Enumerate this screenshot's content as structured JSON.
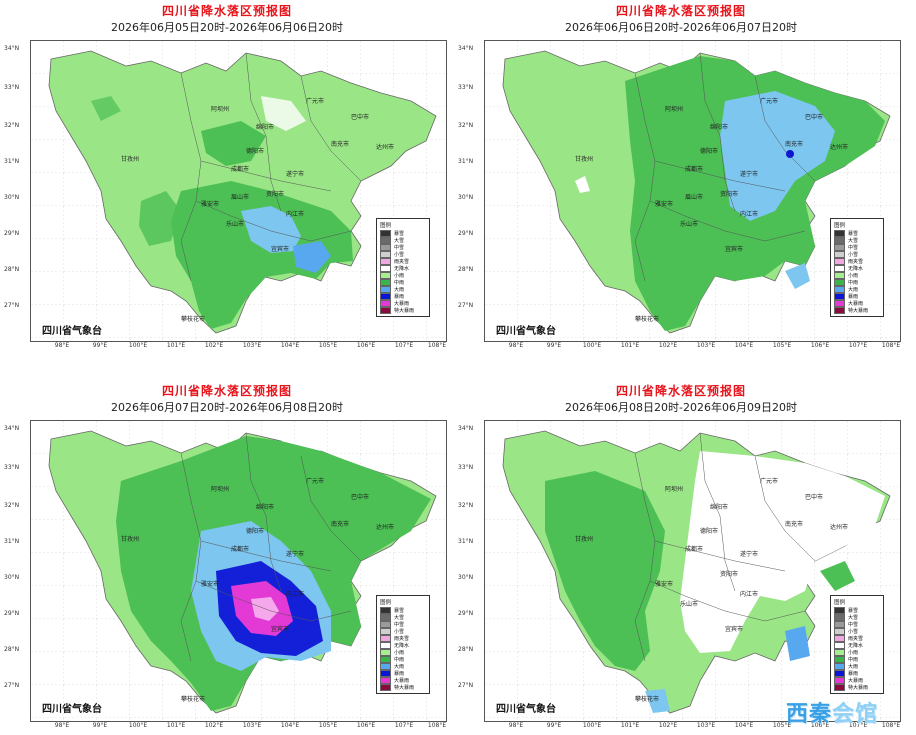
{
  "panels": [
    {
      "title": "四川省降水落区预报图",
      "period": "2026年06月05日20时-2026年06月06日20时",
      "bureau": "四川省气象台",
      "base_color": "#8fdf7f",
      "features": [
        {
          "kind": "blob",
          "color": "#3ab54a"
        },
        {
          "kind": "blob",
          "color": "#3ab54a"
        },
        {
          "kind": "blob",
          "color": "#58a8ef"
        }
      ],
      "cities": [
        "阿坝州",
        "绵阳市",
        "广元市",
        "巴中市",
        "德阳市",
        "南充市",
        "达州市",
        "甘孜州",
        "成都市",
        "遂宁市",
        "雅安市",
        "眉山市",
        "资阳市",
        "乐山市",
        "内江市",
        "宜宾市",
        "攀枝花市"
      ]
    },
    {
      "title": "四川省降水落区预报图",
      "period": "2026年06月06日20时-2026年06月07日20时",
      "bureau": "四川省气象台",
      "base_color": "#8fdf7f",
      "features": [],
      "cities": [
        "阿坝州",
        "绵阳市",
        "广元市",
        "巴中市",
        "德阳市",
        "南充市",
        "达州市",
        "甘孜州",
        "成都市",
        "遂宁市",
        "雅安市",
        "眉山市",
        "资阳市",
        "乐山市",
        "内江市",
        "宜宾市",
        "攀枝花市"
      ]
    },
    {
      "title": "四川省降水落区预报图",
      "period": "2026年06月07日20时-2026年06月08日20时",
      "bureau": "四川省气象台",
      "base_color": "#8fdf7f",
      "features": [],
      "cities": [
        "阿坝州",
        "绵阳市",
        "广元市",
        "巴中市",
        "德阳市",
        "南充市",
        "达州市",
        "甘孜州",
        "成都市",
        "遂宁市",
        "雅安市",
        "内江市",
        "宜宾市",
        "攀枝花市"
      ]
    },
    {
      "title": "四川省降水落区预报图",
      "period": "2026年06月08日20时-2026年06月09日20时",
      "bureau": "四川省气象台",
      "base_color": "#8fdf7f",
      "features": [],
      "cities": [
        "阿坝州",
        "绵阳市",
        "广元市",
        "巴中市",
        "德阳市",
        "南充市",
        "达州市",
        "甘孜州",
        "成都市",
        "遂宁市",
        "雅安市",
        "资阳市",
        "乐山市",
        "内江市",
        "宜宾市",
        "攀枝花市"
      ]
    }
  ],
  "legend": {
    "title": "图例",
    "items": [
      {
        "label": "暴雪",
        "color": "#333333"
      },
      {
        "label": "大雪",
        "color": "#6b6b6b"
      },
      {
        "label": "中雪",
        "color": "#9a9a9a"
      },
      {
        "label": "小雪",
        "color": "#cfcfcf"
      },
      {
        "label": "雨夹雪",
        "color": "#f0a8e0"
      },
      {
        "label": "无降水",
        "color": "#ffffff"
      },
      {
        "label": "小雨",
        "color": "#a6ee90"
      },
      {
        "label": "中雨",
        "color": "#3ab54a"
      },
      {
        "label": "大雨",
        "color": "#58a8ef"
      },
      {
        "label": "暴雨",
        "color": "#0a14d8"
      },
      {
        "label": "大暴雨",
        "color": "#e33ad6"
      },
      {
        "label": "特大暴雨",
        "color": "#8a0a40"
      }
    ]
  },
  "axes": {
    "lat_labels": [
      "34°N",
      "33°N",
      "32°N",
      "31°N",
      "30°N",
      "29°N",
      "28°N",
      "27°N"
    ],
    "lon_labels": [
      "98°E",
      "99°E",
      "100°E",
      "101°E",
      "102°E",
      "103°E",
      "104°E",
      "105°E",
      "106°E",
      "107°E",
      "108°E"
    ]
  },
  "watermark": {
    "part1": "西秦",
    "part2": "会馆"
  }
}
